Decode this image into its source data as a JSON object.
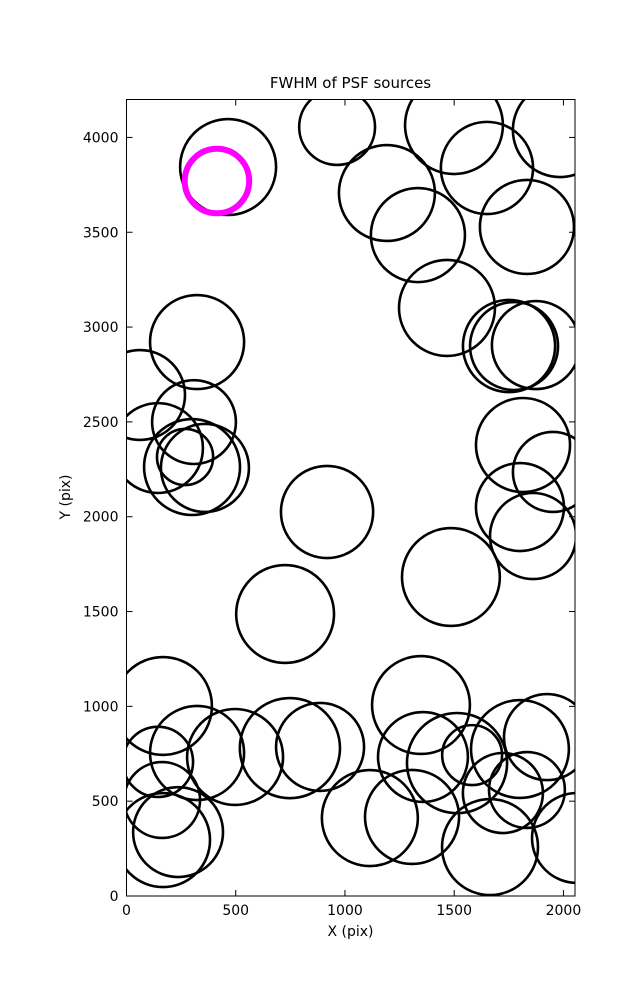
{
  "figure": {
    "background": "#ffffff",
    "axis_color": "#000000"
  },
  "chart_data": {
    "type": "scatter",
    "title": "FWHM of PSF sources",
    "xlabel": "X (pix)",
    "ylabel": "Y (pix)",
    "xlim": [
      0,
      2053
    ],
    "ylim": [
      0,
      4200
    ],
    "x_ticks": [
      0,
      500,
      1000,
      1500,
      2000
    ],
    "y_ticks": [
      0,
      500,
      1000,
      1500,
      2000,
      2500,
      3000,
      3500,
      4000
    ],
    "grid": false,
    "legend": "none",
    "marker_note": "unfilled circles, radius proportional to source FWHM; one highlighted source",
    "styles": {
      "circle_color": "#000000",
      "circle_linewidth": 2.6,
      "highlight_color": "#ff00ff",
      "highlight_linewidth": 6,
      "tick_length": 6,
      "tick_fontsize": 14
    },
    "circles": [
      [
        465,
        3844,
        253
      ],
      [
        964,
        4055,
        200
      ],
      [
        1499,
        4065,
        258
      ],
      [
        1192,
        3707,
        253
      ],
      [
        1334,
        3485,
        248
      ],
      [
        1650,
        3839,
        243
      ],
      [
        1833,
        3528,
        248
      ],
      [
        1984,
        4039,
        248
      ],
      [
        1467,
        3101,
        253
      ],
      [
        1751,
        2900,
        243
      ],
      [
        1774,
        2900,
        232
      ],
      [
        1874,
        2905,
        232
      ],
      [
        1815,
        2378,
        248
      ],
      [
        1952,
        2236,
        211
      ],
      [
        1801,
        2051,
        232
      ],
      [
        1861,
        1898,
        227
      ],
      [
        323,
        2921,
        248
      ],
      [
        62,
        2642,
        237
      ],
      [
        309,
        2499,
        221
      ],
      [
        144,
        2362,
        237
      ],
      [
        268,
        2315,
        148
      ],
      [
        300,
        2262,
        253
      ],
      [
        359,
        2257,
        232
      ],
      [
        918,
        2025,
        243
      ],
      [
        726,
        1487,
        258
      ],
      [
        1485,
        1682,
        258
      ],
      [
        167,
        1002,
        258
      ],
      [
        323,
        754,
        248
      ],
      [
        144,
        707,
        185
      ],
      [
        163,
        506,
        200
      ],
      [
        167,
        295,
        248
      ],
      [
        236,
        337,
        237
      ],
      [
        497,
        733,
        253
      ],
      [
        748,
        780,
        264
      ],
      [
        886,
        786,
        232
      ],
      [
        1348,
        1007,
        258
      ],
      [
        1357,
        733,
        237
      ],
      [
        1513,
        701,
        264
      ],
      [
        1582,
        743,
        158
      ],
      [
        1801,
        775,
        258
      ],
      [
        1925,
        838,
        227
      ],
      [
        1723,
        543,
        211
      ],
      [
        1833,
        559,
        200
      ],
      [
        1307,
        417,
        248
      ],
      [
        1114,
        411,
        253
      ],
      [
        1664,
        258,
        253
      ],
      [
        2062,
        306,
        237
      ]
    ],
    "highlight_circle": [
      414,
      3770,
      170
    ]
  }
}
